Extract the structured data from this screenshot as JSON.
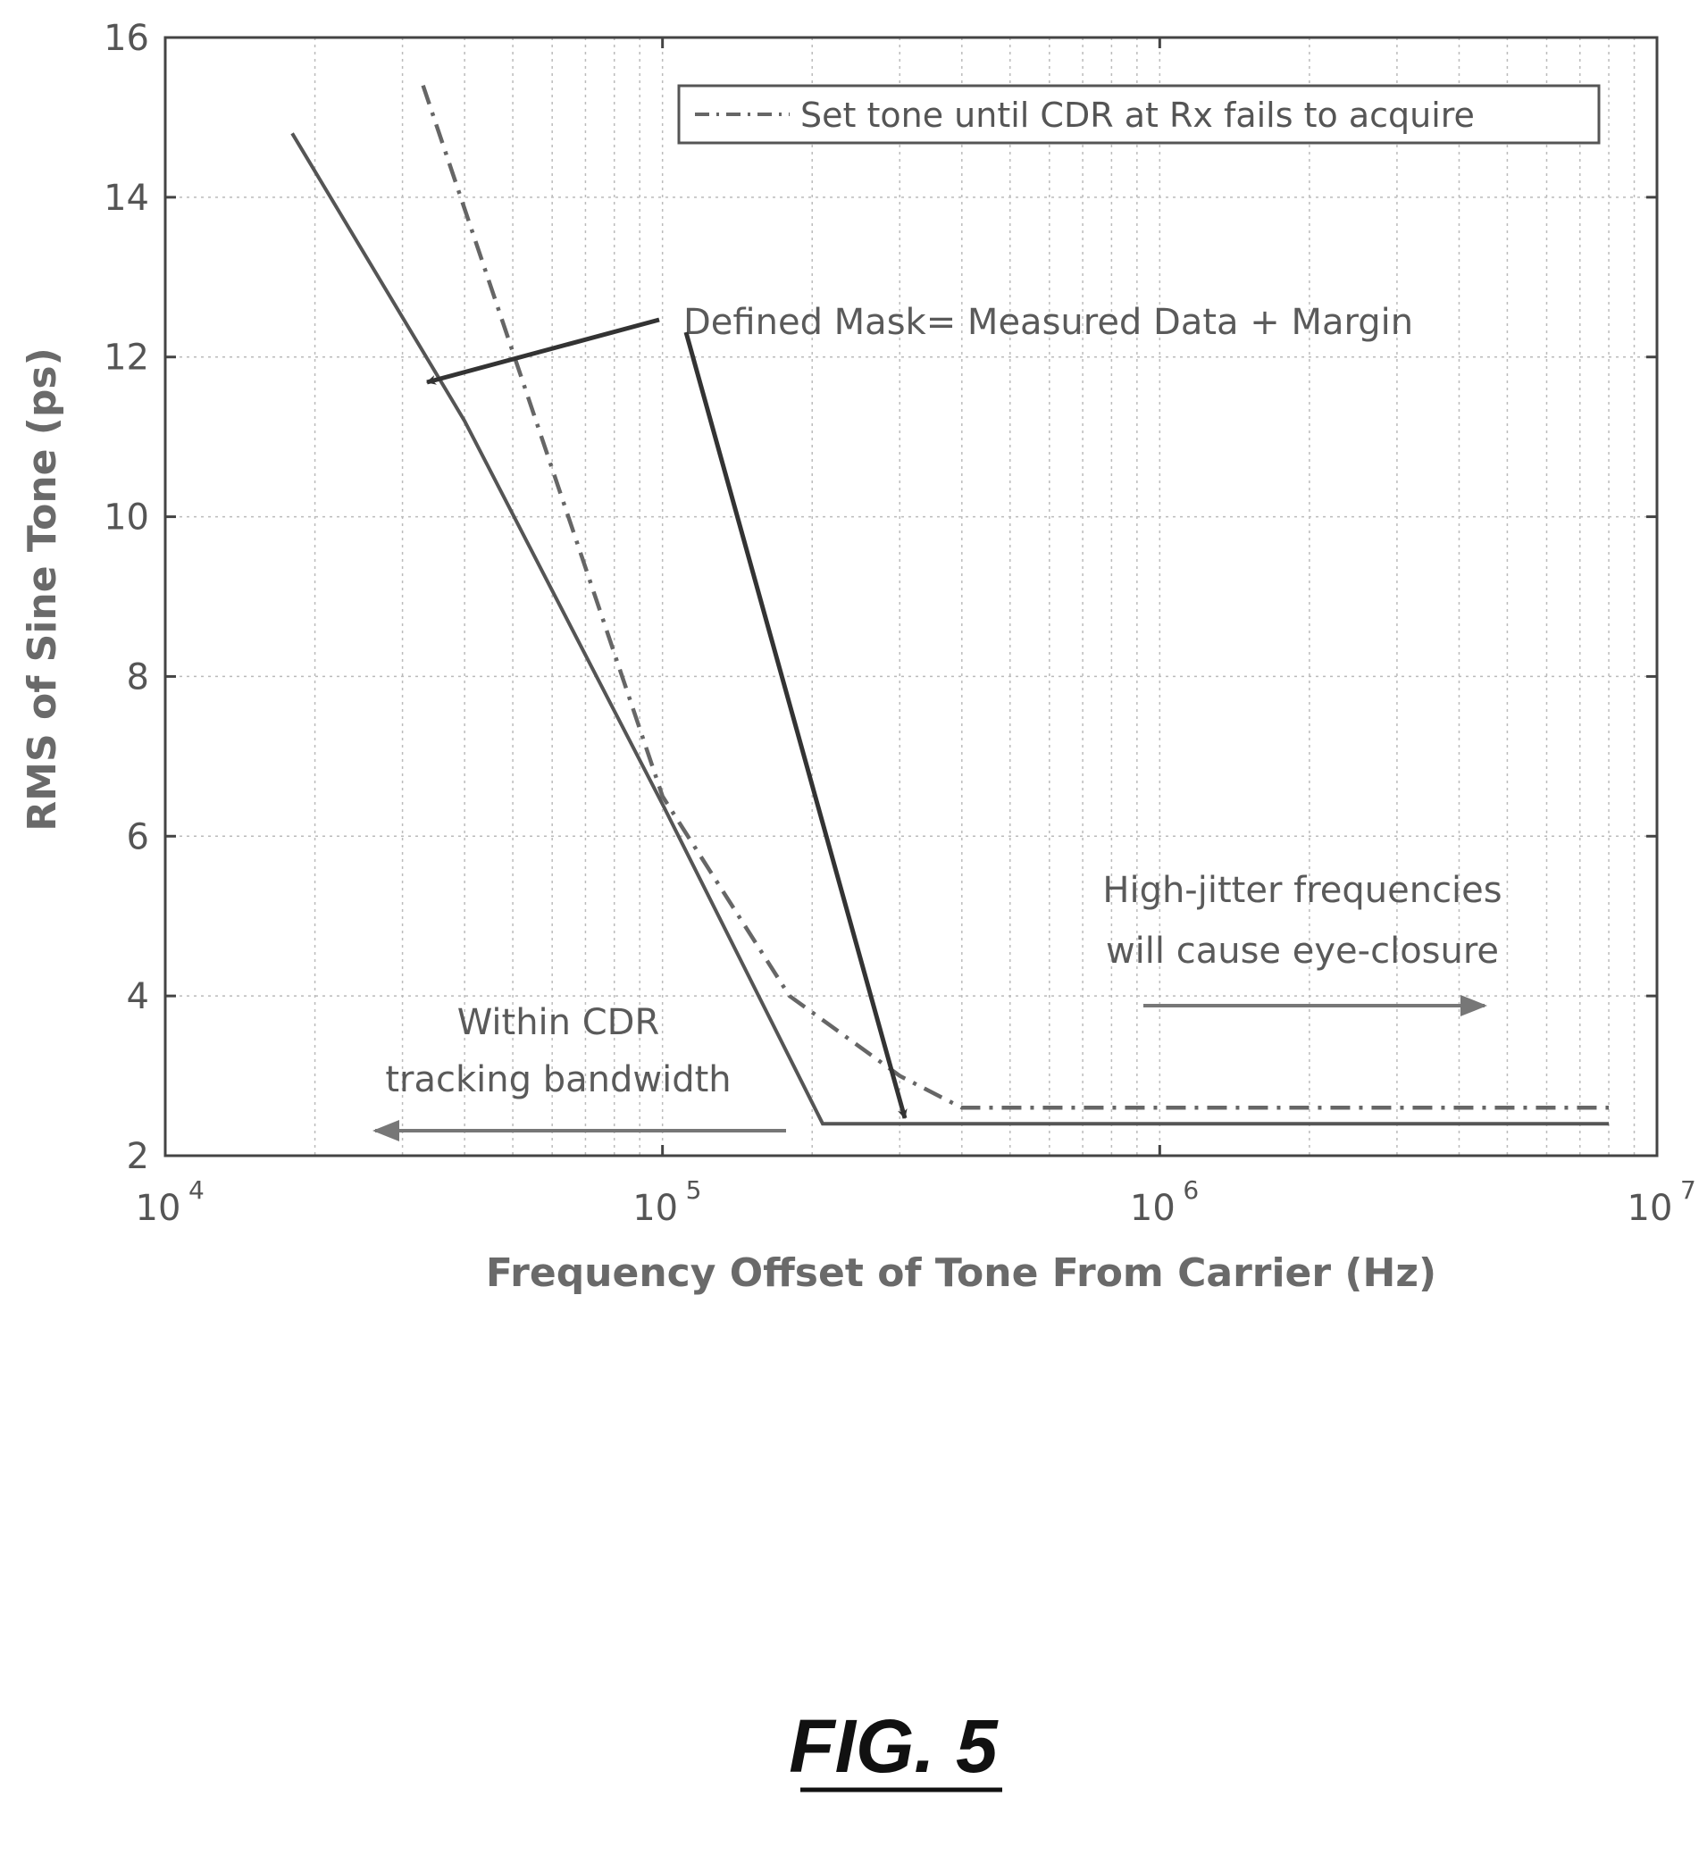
{
  "chart_data": {
    "type": "line",
    "x_scale": "log",
    "xlim": [
      10000,
      10000000
    ],
    "ylim": [
      2,
      16
    ],
    "xlabel": "Frequency Offset of Tone From Carrier (Hz)",
    "ylabel": "RMS of Sine Tone (ps)",
    "grid": true,
    "x_ticks": [
      {
        "base": "10",
        "exp": "4",
        "value": 10000
      },
      {
        "base": "10",
        "exp": "5",
        "value": 100000
      },
      {
        "base": "10",
        "exp": "6",
        "value": 1000000
      },
      {
        "base": "10",
        "exp": "7",
        "value": 10000000
      }
    ],
    "y_ticks": [
      "2",
      "4",
      "6",
      "8",
      "10",
      "12",
      "14",
      "16"
    ],
    "legend_position": "top-right",
    "series": [
      {
        "name": "Set tone until CDR at Rx fails to acquire",
        "style": "dash-dot",
        "x": [
          33000,
          100000,
          180000,
          300000,
          400000,
          1000000,
          8000000
        ],
        "y": [
          15.4,
          6.5,
          4.0,
          3.0,
          2.6,
          2.6,
          2.6
        ]
      },
      {
        "style": "solid",
        "x": [
          18000,
          40000,
          100000,
          210000,
          300000,
          1000000,
          8000000
        ],
        "y": [
          14.8,
          11.2,
          6.4,
          2.4,
          2.4,
          2.4,
          2.4
        ]
      }
    ],
    "annotations": {
      "mask": "Defined Mask= Measured Data + Margin",
      "within_line1": "Within CDR",
      "within_line2": "tracking bandwidth",
      "high_line1": "High-jitter frequencies",
      "high_line2": "will cause eye-closure"
    }
  },
  "figure_label": "FIG. 5",
  "colors": {
    "solid_line": "#555555",
    "dashdot_line": "#666666",
    "arrow": "#333333",
    "grid": "#bbbbbb",
    "frame": "#444444"
  }
}
